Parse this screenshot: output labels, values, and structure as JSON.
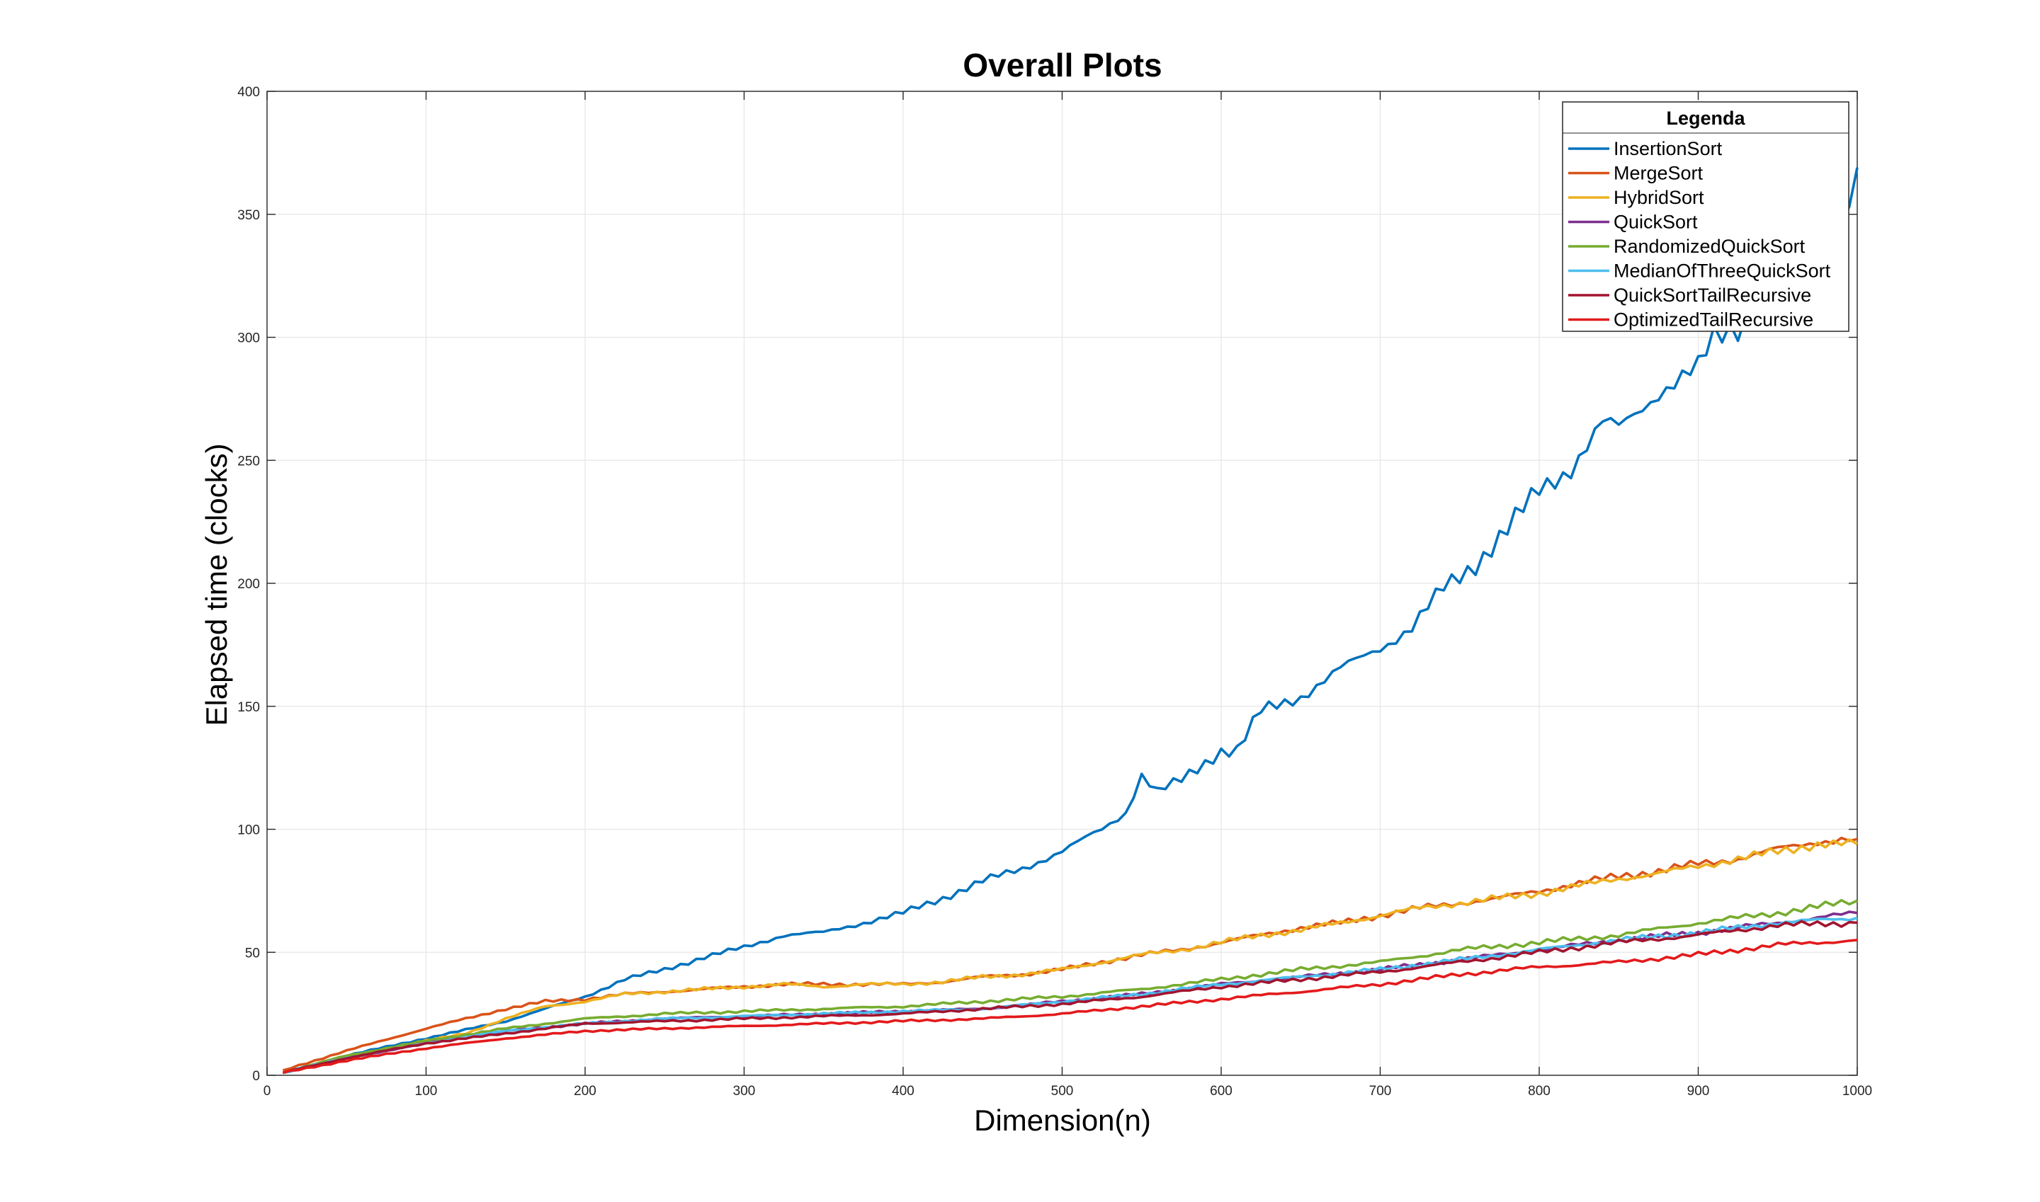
{
  "chart_data": {
    "type": "line",
    "title": "Overall Plots",
    "xlabel": "Dimension(n)",
    "ylabel": "Elapsed time (clocks)",
    "xlim": [
      0,
      1000
    ],
    "ylim": [
      0,
      400
    ],
    "xticks": [
      0,
      100,
      200,
      300,
      400,
      500,
      600,
      700,
      800,
      900,
      1000
    ],
    "yticks": [
      0,
      50,
      100,
      150,
      200,
      250,
      300,
      350,
      400
    ],
    "grid": true,
    "legend": {
      "title": "Legenda",
      "position": "top-right"
    },
    "series": [
      {
        "name": "InsertionSort",
        "color": "#0072BD",
        "points": [
          [
            10,
            1
          ],
          [
            50,
            8
          ],
          [
            100,
            15
          ],
          [
            150,
            22
          ],
          [
            175,
            27
          ],
          [
            200,
            32
          ],
          [
            225,
            39
          ],
          [
            250,
            43
          ],
          [
            275,
            48
          ],
          [
            300,
            52
          ],
          [
            325,
            57
          ],
          [
            350,
            58
          ],
          [
            375,
            62
          ],
          [
            400,
            66
          ],
          [
            425,
            72
          ],
          [
            450,
            79
          ],
          [
            475,
            84
          ],
          [
            500,
            91
          ],
          [
            525,
            100
          ],
          [
            540,
            107
          ],
          [
            550,
            122
          ],
          [
            560,
            115
          ],
          [
            575,
            120
          ],
          [
            600,
            132
          ],
          [
            610,
            132
          ],
          [
            625,
            148
          ],
          [
            650,
            154
          ],
          [
            675,
            165
          ],
          [
            700,
            174
          ],
          [
            720,
            182
          ],
          [
            740,
            198
          ],
          [
            760,
            208
          ],
          [
            780,
            222
          ],
          [
            800,
            238
          ],
          [
            820,
            247
          ],
          [
            840,
            265
          ],
          [
            850,
            263
          ],
          [
            875,
            278
          ],
          [
            900,
            287
          ],
          [
            910,
            300
          ],
          [
            925,
            305
          ],
          [
            950,
            318
          ],
          [
            975,
            333
          ],
          [
            990,
            345
          ],
          [
            1000,
            369
          ]
        ]
      },
      {
        "name": "MergeSort",
        "color": "#D95319",
        "points": [
          [
            10,
            2
          ],
          [
            50,
            10
          ],
          [
            100,
            19
          ],
          [
            125,
            23
          ],
          [
            150,
            27
          ],
          [
            175,
            30
          ],
          [
            200,
            31
          ],
          [
            225,
            33
          ],
          [
            250,
            34
          ],
          [
            275,
            35
          ],
          [
            300,
            36
          ],
          [
            325,
            37
          ],
          [
            350,
            37
          ],
          [
            375,
            37
          ],
          [
            400,
            37
          ],
          [
            425,
            38
          ],
          [
            450,
            40
          ],
          [
            475,
            41
          ],
          [
            500,
            43
          ],
          [
            525,
            46
          ],
          [
            550,
            49
          ],
          [
            575,
            51
          ],
          [
            600,
            54
          ],
          [
            625,
            57
          ],
          [
            650,
            60
          ],
          [
            675,
            62
          ],
          [
            700,
            65
          ],
          [
            725,
            68
          ],
          [
            750,
            70
          ],
          [
            775,
            72
          ],
          [
            800,
            75
          ],
          [
            825,
            78
          ],
          [
            850,
            81
          ],
          [
            875,
            83
          ],
          [
            900,
            86
          ],
          [
            925,
            88
          ],
          [
            950,
            92
          ],
          [
            975,
            95
          ],
          [
            1000,
            96
          ]
        ]
      },
      {
        "name": "HybridSort",
        "color": "#EDB120",
        "points": [
          [
            10,
            1
          ],
          [
            50,
            7
          ],
          [
            100,
            14
          ],
          [
            125,
            17
          ],
          [
            150,
            23
          ],
          [
            175,
            28
          ],
          [
            200,
            30
          ],
          [
            225,
            33
          ],
          [
            250,
            34
          ],
          [
            275,
            35
          ],
          [
            300,
            36
          ],
          [
            325,
            37
          ],
          [
            350,
            36
          ],
          [
            375,
            37
          ],
          [
            400,
            37
          ],
          [
            425,
            38
          ],
          [
            450,
            40
          ],
          [
            475,
            41
          ],
          [
            500,
            43
          ],
          [
            525,
            46
          ],
          [
            550,
            49
          ],
          [
            575,
            51
          ],
          [
            600,
            54
          ],
          [
            625,
            57
          ],
          [
            650,
            59
          ],
          [
            675,
            62
          ],
          [
            700,
            65
          ],
          [
            725,
            68
          ],
          [
            750,
            70
          ],
          [
            775,
            72
          ],
          [
            800,
            74
          ],
          [
            825,
            77
          ],
          [
            850,
            80
          ],
          [
            875,
            82
          ],
          [
            900,
            85
          ],
          [
            925,
            88
          ],
          [
            950,
            91
          ],
          [
            975,
            94
          ],
          [
            1000,
            94
          ]
        ]
      },
      {
        "name": "QuickSort",
        "color": "#7E2F8E",
        "points": [
          [
            10,
            1
          ],
          [
            50,
            7
          ],
          [
            100,
            13
          ],
          [
            150,
            18
          ],
          [
            200,
            21
          ],
          [
            250,
            23
          ],
          [
            300,
            24
          ],
          [
            350,
            25
          ],
          [
            400,
            26
          ],
          [
            450,
            27
          ],
          [
            500,
            30
          ],
          [
            550,
            33
          ],
          [
            600,
            37
          ],
          [
            650,
            40
          ],
          [
            700,
            43
          ],
          [
            750,
            47
          ],
          [
            800,
            51
          ],
          [
            850,
            55
          ],
          [
            900,
            58
          ],
          [
            950,
            62
          ],
          [
            1000,
            66
          ]
        ]
      },
      {
        "name": "RandomizedQuickSort",
        "color": "#77AC30",
        "points": [
          [
            10,
            1
          ],
          [
            50,
            8
          ],
          [
            100,
            14
          ],
          [
            150,
            19
          ],
          [
            200,
            23
          ],
          [
            250,
            25
          ],
          [
            300,
            26
          ],
          [
            350,
            27
          ],
          [
            400,
            28
          ],
          [
            450,
            30
          ],
          [
            500,
            32
          ],
          [
            550,
            35
          ],
          [
            600,
            39
          ],
          [
            650,
            43
          ],
          [
            700,
            46
          ],
          [
            750,
            51
          ],
          [
            800,
            54
          ],
          [
            850,
            57
          ],
          [
            900,
            62
          ],
          [
            950,
            66
          ],
          [
            1000,
            71
          ]
        ]
      },
      {
        "name": "MedianOfThreeQuickSort",
        "color": "#4DBEEE",
        "points": [
          [
            10,
            1
          ],
          [
            50,
            7
          ],
          [
            100,
            13
          ],
          [
            150,
            18
          ],
          [
            200,
            21
          ],
          [
            250,
            23
          ],
          [
            300,
            24
          ],
          [
            350,
            25
          ],
          [
            400,
            26
          ],
          [
            450,
            27
          ],
          [
            500,
            30
          ],
          [
            550,
            33
          ],
          [
            600,
            37
          ],
          [
            650,
            40
          ],
          [
            700,
            43
          ],
          [
            750,
            47
          ],
          [
            800,
            51
          ],
          [
            850,
            55
          ],
          [
            900,
            58
          ],
          [
            950,
            62
          ],
          [
            1000,
            64
          ]
        ]
      },
      {
        "name": "QuickSortTailRecursive",
        "color": "#A2142F",
        "points": [
          [
            10,
            1
          ],
          [
            50,
            7
          ],
          [
            100,
            13
          ],
          [
            150,
            17
          ],
          [
            200,
            21
          ],
          [
            250,
            22
          ],
          [
            300,
            23
          ],
          [
            350,
            24
          ],
          [
            400,
            25
          ],
          [
            450,
            27
          ],
          [
            500,
            29
          ],
          [
            550,
            32
          ],
          [
            600,
            36
          ],
          [
            650,
            39
          ],
          [
            700,
            42
          ],
          [
            750,
            46
          ],
          [
            800,
            50
          ],
          [
            850,
            54
          ],
          [
            900,
            57
          ],
          [
            950,
            61
          ],
          [
            1000,
            62
          ]
        ]
      },
      {
        "name": "OptimizedTailRecursive",
        "color": "#E31A1C",
        "points": [
          [
            10,
            1
          ],
          [
            50,
            6
          ],
          [
            100,
            11
          ],
          [
            150,
            15
          ],
          [
            200,
            18
          ],
          [
            250,
            19
          ],
          [
            300,
            20
          ],
          [
            350,
            21
          ],
          [
            400,
            22
          ],
          [
            450,
            23
          ],
          [
            500,
            25
          ],
          [
            550,
            28
          ],
          [
            600,
            31
          ],
          [
            650,
            34
          ],
          [
            700,
            37
          ],
          [
            750,
            41
          ],
          [
            800,
            44
          ],
          [
            850,
            46
          ],
          [
            900,
            49
          ],
          [
            950,
            53
          ],
          [
            1000,
            55
          ]
        ]
      }
    ]
  }
}
